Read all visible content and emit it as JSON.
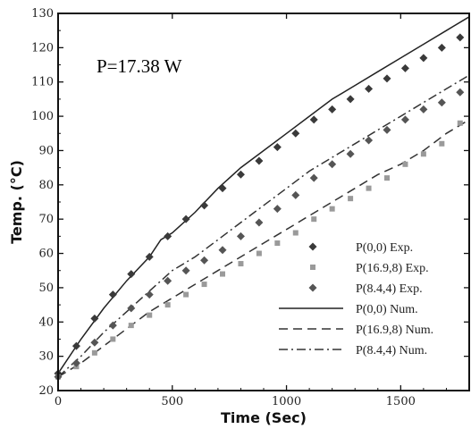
{
  "chart_data": {
    "type": "line",
    "xlabel": "Time (Sec)",
    "ylabel": "Temp. (°C)",
    "xlim": [
      0,
      1800
    ],
    "ylim": [
      20,
      130
    ],
    "xticks": [
      0,
      500,
      1000,
      1500
    ],
    "yticks": [
      20,
      30,
      40,
      50,
      60,
      70,
      80,
      90,
      100,
      110,
      120,
      130
    ],
    "annotation": "P=17.38 W",
    "grid": false,
    "legend_position": "bottom-right",
    "series": [
      {
        "name": "P(0,0) Exp.",
        "kind": "markers",
        "marker": "diamond",
        "color": "#3a3a3a",
        "x": [
          0,
          80,
          160,
          240,
          320,
          400,
          480,
          560,
          640,
          720,
          800,
          880,
          960,
          1040,
          1120,
          1200,
          1280,
          1360,
          1440,
          1520,
          1600,
          1680,
          1760
        ],
        "y": [
          25,
          33,
          41,
          48,
          54,
          59,
          65,
          70,
          74,
          79,
          83,
          87,
          91,
          95,
          99,
          102,
          105,
          108,
          111,
          114,
          117,
          120,
          123
        ]
      },
      {
        "name": "P(16.9,8) Exp.",
        "kind": "markers",
        "marker": "square",
        "color": "#9a9a9a",
        "x": [
          0,
          80,
          160,
          240,
          320,
          400,
          480,
          560,
          640,
          720,
          800,
          880,
          960,
          1040,
          1120,
          1200,
          1280,
          1360,
          1440,
          1520,
          1600,
          1680,
          1760
        ],
        "y": [
          24,
          27,
          31,
          35,
          39,
          42,
          45,
          48,
          51,
          54,
          57,
          60,
          63,
          66,
          70,
          73,
          76,
          79,
          82,
          86,
          89,
          92,
          98
        ]
      },
      {
        "name": "P(8.4,4) Exp.",
        "kind": "markers",
        "marker": "diamond",
        "color": "#555555",
        "x": [
          0,
          80,
          160,
          240,
          320,
          400,
          480,
          560,
          640,
          720,
          800,
          880,
          960,
          1040,
          1120,
          1200,
          1280,
          1360,
          1440,
          1520,
          1600,
          1680,
          1760
        ],
        "y": [
          24,
          28,
          34,
          39,
          44,
          48,
          52,
          55,
          58,
          61,
          65,
          69,
          73,
          77,
          82,
          86,
          89,
          93,
          96,
          99,
          102,
          104,
          107
        ]
      },
      {
        "name": "P(0,0) Num.",
        "kind": "line",
        "dash": "solid",
        "color": "#222222",
        "x": [
          0,
          100,
          200,
          300,
          400,
          450,
          500,
          600,
          700,
          800,
          900,
          1000,
          1100,
          1200,
          1300,
          1400,
          1500,
          1600,
          1700,
          1800
        ],
        "y": [
          25,
          35,
          44,
          52,
          59,
          64,
          66,
          72,
          79,
          85,
          90,
          95,
          100,
          105,
          109,
          113,
          117,
          121,
          125,
          129
        ]
      },
      {
        "name": "P(16.9,8) Num.",
        "kind": "line",
        "dash": "dashed",
        "color": "#333333",
        "x": [
          0,
          100,
          200,
          300,
          400,
          500,
          600,
          700,
          800,
          900,
          1000,
          1100,
          1200,
          1300,
          1400,
          1500,
          1600,
          1700,
          1800
        ],
        "y": [
          24,
          28,
          33,
          38,
          43,
          47,
          51,
          55,
          59,
          63,
          67,
          71,
          75,
          79,
          83,
          86,
          90,
          95,
          99
        ]
      },
      {
        "name": "P(8.4,4) Num.",
        "kind": "line",
        "dash": "dashdot",
        "color": "#333333",
        "x": [
          0,
          100,
          200,
          300,
          400,
          500,
          600,
          700,
          800,
          900,
          1000,
          1100,
          1200,
          1300,
          1400,
          1500,
          1600,
          1700,
          1800
        ],
        "y": [
          24,
          30,
          37,
          43,
          49,
          55,
          59,
          64,
          69,
          74,
          79,
          84,
          88,
          92,
          96,
          100,
          104,
          108,
          112
        ]
      }
    ]
  }
}
